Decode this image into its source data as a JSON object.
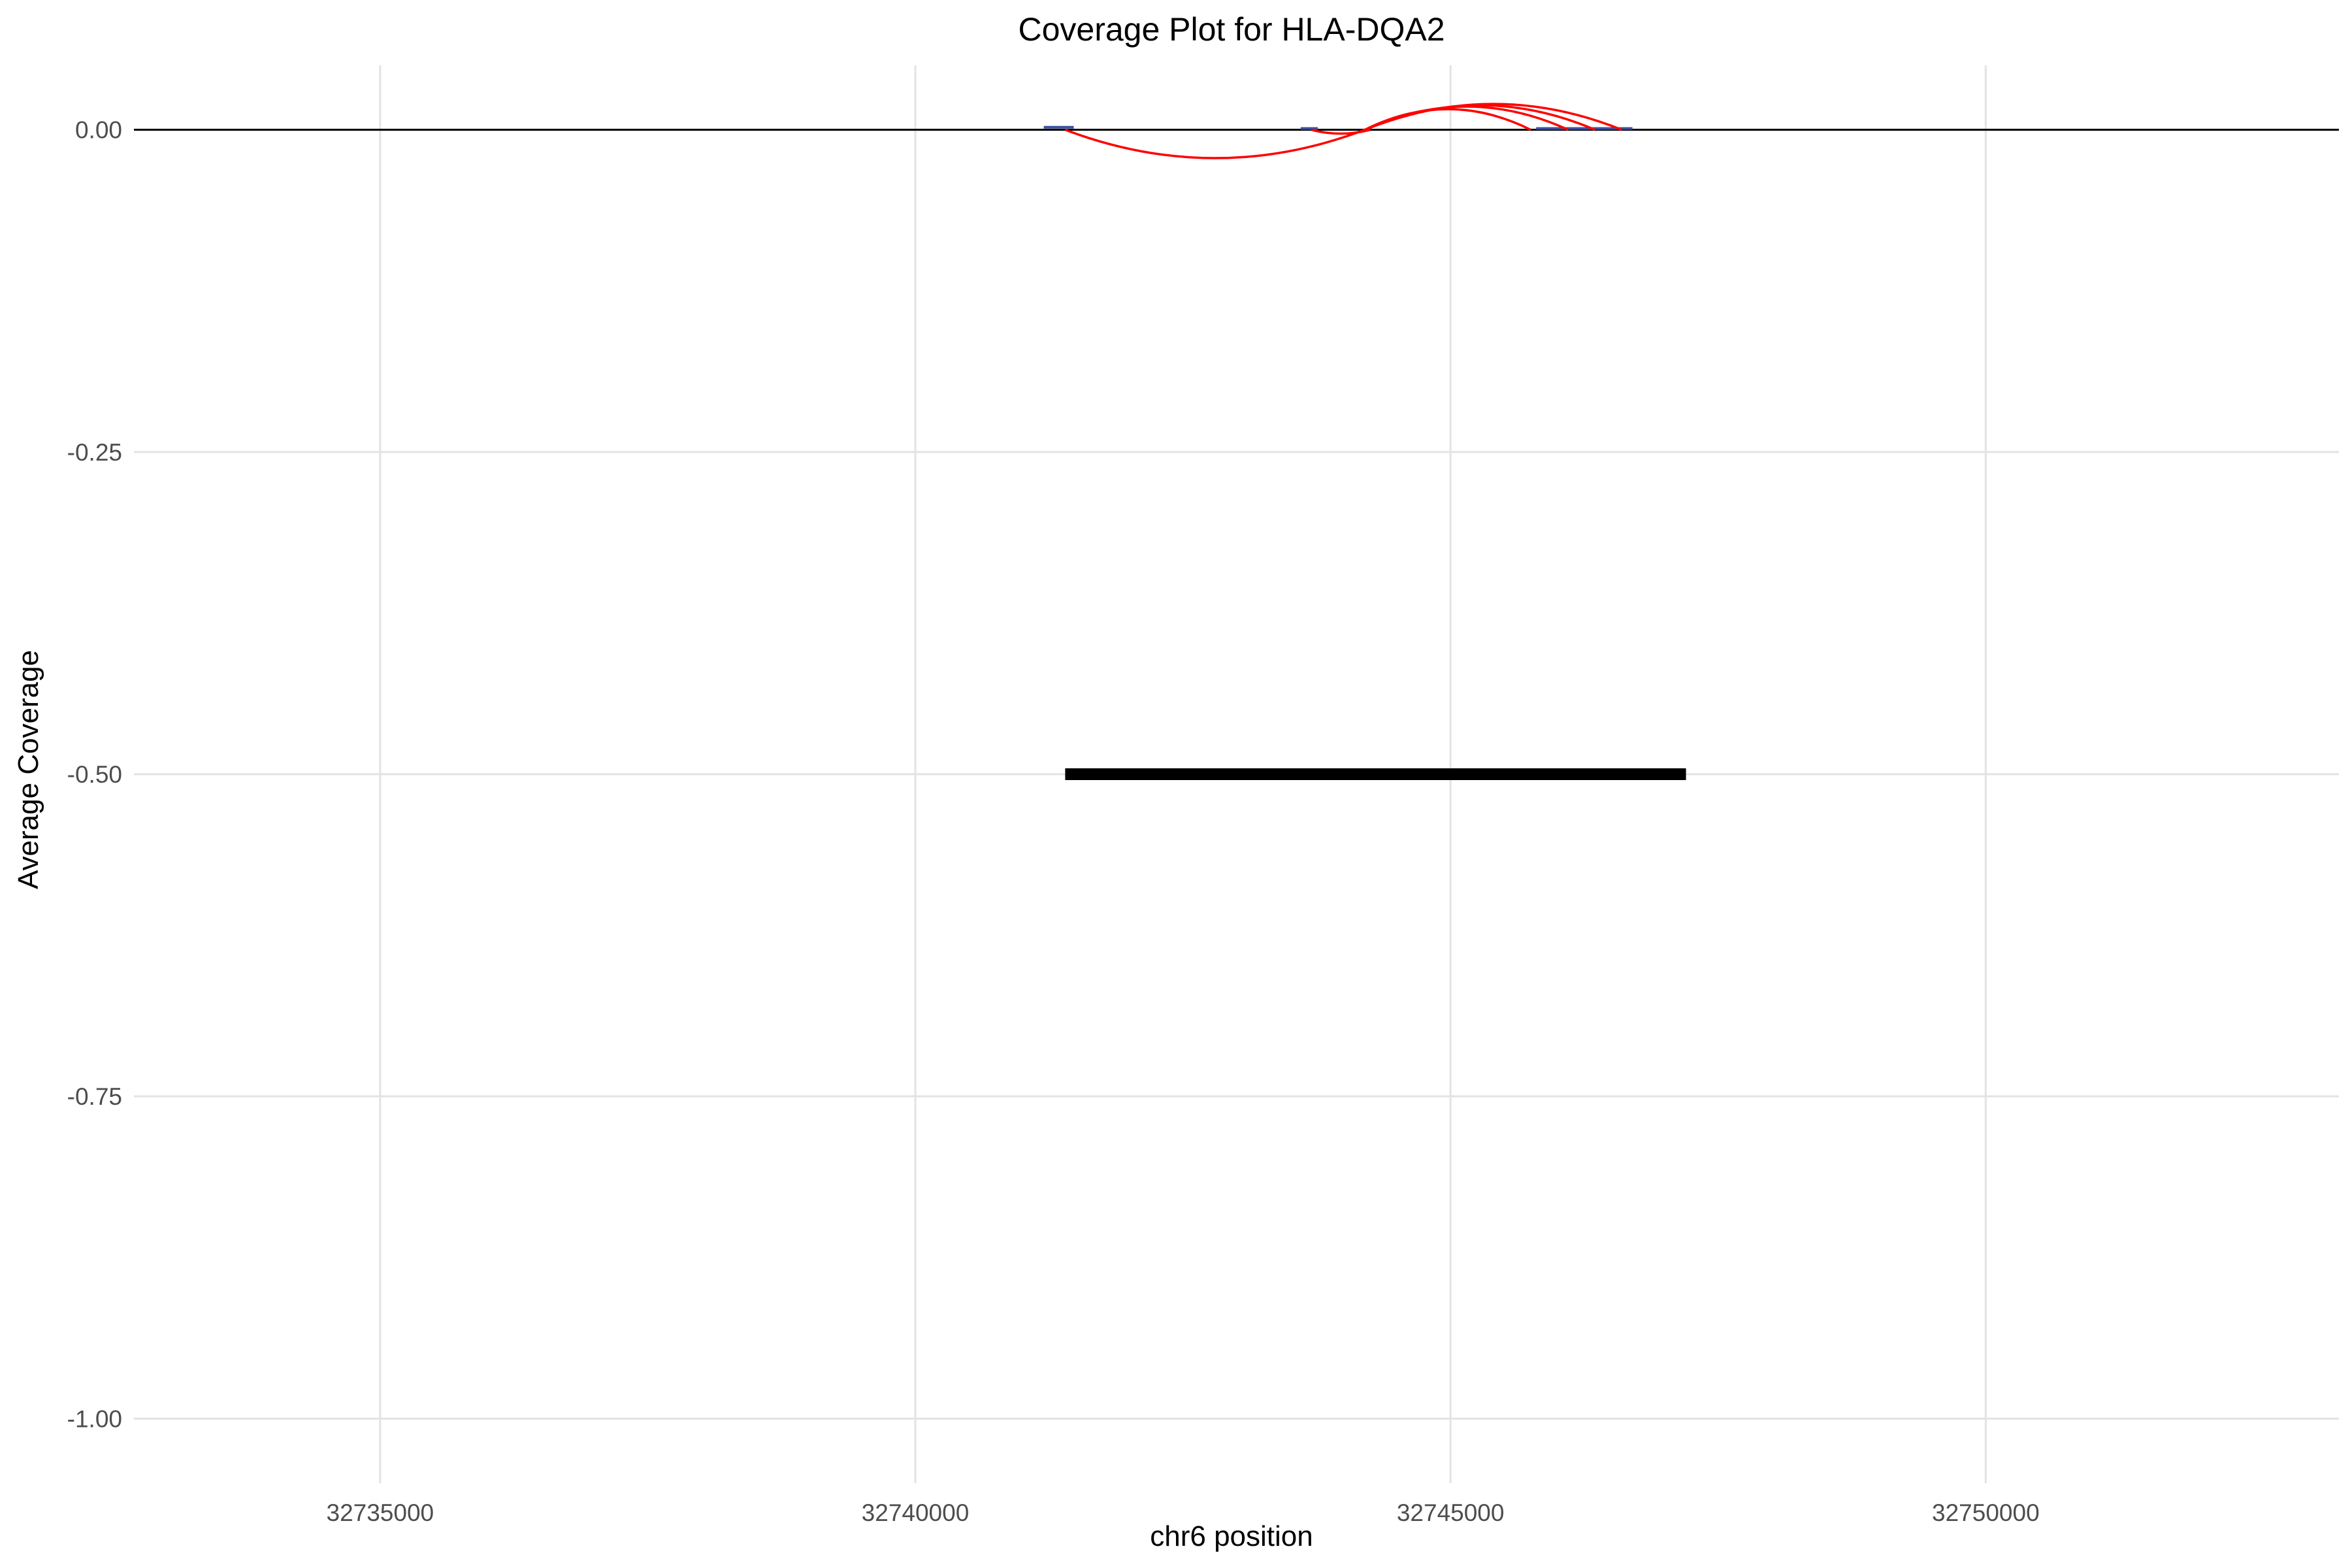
{
  "chart_data": {
    "type": "line",
    "title": "Coverage Plot for HLA-DQA2",
    "xlabel": "chr6 position",
    "ylabel": "Average Coverage",
    "xlim": [
      32732700,
      32753300
    ],
    "ylim": [
      -1.05,
      0.05
    ],
    "x_ticks": [
      32735000,
      32740000,
      32745000,
      32750000
    ],
    "x_tick_labels": [
      "32735000",
      "32740000",
      "32745000",
      "32750000"
    ],
    "y_ticks": [
      0.0,
      -0.25,
      -0.5,
      -0.75,
      -1.0
    ],
    "y_tick_labels": [
      "0.00",
      "-0.25",
      "-0.50",
      "-0.75",
      "-1.00"
    ],
    "grid": true,
    "baseline": {
      "y": 0,
      "x_range": [
        32732700,
        32753300
      ],
      "color": "#000000"
    },
    "coverage_segments": [
      {
        "x_start": 32741200,
        "x_end": 32741480,
        "y": 0.002
      },
      {
        "x_start": 32743600,
        "x_end": 32743760,
        "y": 0.001
      },
      {
        "x_start": 32745800,
        "x_end": 32746700,
        "y": 0.001
      }
    ],
    "coverage_color": "#3a4fa0",
    "splice_junctions": [
      {
        "start": 32741400,
        "end": 32744200,
        "peak": -0.022
      },
      {
        "start": 32743700,
        "end": 32744250,
        "peak": -0.003
      },
      {
        "start": 32744200,
        "end": 32745750,
        "peak": 0.016
      },
      {
        "start": 32744200,
        "end": 32746100,
        "peak": 0.018
      },
      {
        "start": 32744200,
        "end": 32746350,
        "peak": 0.019
      },
      {
        "start": 32744200,
        "end": 32746600,
        "peak": 0.02
      }
    ],
    "junction_color": "#ff0000",
    "gene_model": {
      "x_start": 32741400,
      "x_end": 32747200,
      "y": -0.5,
      "color": "#000000"
    }
  }
}
